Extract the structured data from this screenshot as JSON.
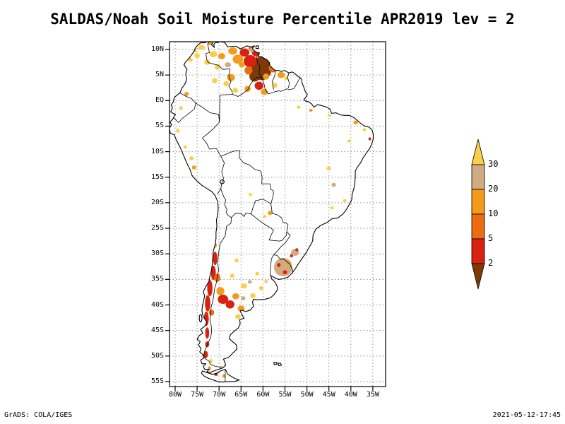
{
  "title": "SALDAS/Noah Soil Moisture Percentile APR2019 lev = 2",
  "axes": {
    "lat_labels": [
      "10N",
      "5N",
      "EQ",
      "5S",
      "10S",
      "15S",
      "20S",
      "25S",
      "30S",
      "35S",
      "40S",
      "45S",
      "50S",
      "55S"
    ],
    "lon_labels": [
      "80W",
      "75W",
      "70W",
      "65W",
      "60W",
      "55W",
      "50W",
      "45W",
      "40W",
      "35W"
    ]
  },
  "colorbar": {
    "labels": [
      "30",
      "20",
      "10",
      "5",
      "2"
    ],
    "segments": [
      {
        "name": "above-30",
        "color": "#fcce49"
      },
      {
        "name": "20-30",
        "color": "#d3ab82"
      },
      {
        "name": "10-20",
        "color": "#f49b1b"
      },
      {
        "name": "5-10",
        "color": "#ec6c12"
      },
      {
        "name": "2-5",
        "color": "#d82210"
      },
      {
        "name": "below-2",
        "color": "#7d3a06"
      }
    ]
  },
  "footer": {
    "left": "GrADS: COLA/IGES",
    "right": "2021-05-12-17:45"
  },
  "chart_data": {
    "type": "heatmap",
    "title": "SALDAS/Noah Soil Moisture Percentile APR2019 lev = 2",
    "variable": "Soil Moisture Percentile",
    "time": "APR2019",
    "level": "2",
    "projection": "latlon",
    "lon_range_deg": [
      -81.3,
      -32.2
    ],
    "lat_range_deg": [
      -56.0,
      11.5
    ],
    "percentile_levels": [
      30,
      20,
      10,
      5,
      2
    ],
    "legend_note": "top arrow = above 30th percentile, bottom arrow = below 2nd percentile",
    "regions_format": [
      "lon",
      "lat",
      "rx_deg",
      "ry_deg",
      "class_index_into_colorbar_segments"
    ],
    "regions": [
      [
        -60.3,
        6.3,
        2.3,
        2.3,
        5
      ],
      [
        -58.9,
        8.4,
        1.5,
        1.3,
        5
      ],
      [
        -61.9,
        4.7,
        1.2,
        1.0,
        5
      ],
      [
        -59.6,
        9.7,
        0.9,
        0.7,
        5
      ],
      [
        -62.9,
        7.7,
        1.5,
        1.2,
        4
      ],
      [
        -61.3,
        9.5,
        1.3,
        0.9,
        4
      ],
      [
        -64.2,
        9.4,
        1.1,
        0.8,
        4
      ],
      [
        -60.9,
        2.9,
        1.0,
        0.8,
        4
      ],
      [
        -57.7,
        6.4,
        1.0,
        0.9,
        3
      ],
      [
        -63.3,
        5.9,
        0.9,
        0.8,
        3
      ],
      [
        -62.6,
        10.2,
        0.7,
        0.5,
        3
      ],
      [
        -65.7,
        8.1,
        1.2,
        0.9,
        2
      ],
      [
        -66.9,
        9.7,
        1.0,
        0.7,
        2
      ],
      [
        -67.3,
        4.5,
        0.9,
        0.7,
        2
      ],
      [
        -59.7,
        1.7,
        0.8,
        0.6,
        2
      ],
      [
        -63.5,
        2.3,
        0.7,
        0.6,
        2
      ],
      [
        -55.9,
        5.0,
        0.8,
        0.6,
        2
      ],
      [
        -69.4,
        8.7,
        0.8,
        0.6,
        2
      ],
      [
        -59.3,
        4.7,
        0.7,
        0.6,
        2
      ],
      [
        -75.8,
        9.9,
        0.6,
        0.5,
        2
      ],
      [
        -72.0,
        11.3,
        0.6,
        0.5,
        2
      ],
      [
        -64.8,
        7.0,
        0.7,
        0.5,
        2
      ],
      [
        -71.3,
        9.1,
        0.9,
        0.6,
        0
      ],
      [
        -72.7,
        7.5,
        0.7,
        0.5,
        0
      ],
      [
        -74.0,
        10.4,
        0.8,
        0.5,
        0
      ],
      [
        -75.0,
        8.8,
        0.6,
        0.5,
        0
      ],
      [
        -70.4,
        6.5,
        0.6,
        0.5,
        0
      ],
      [
        -68.4,
        3.3,
        0.6,
        0.5,
        0
      ],
      [
        -71.0,
        3.9,
        0.6,
        0.5,
        0
      ],
      [
        -66.3,
        2.0,
        0.6,
        0.5,
        0
      ],
      [
        -57.3,
        3.0,
        0.6,
        0.5,
        0
      ],
      [
        -54.7,
        4.4,
        0.5,
        0.4,
        0
      ],
      [
        -76.5,
        8.0,
        0.5,
        0.4,
        0
      ],
      [
        -62.4,
        9.9,
        0.7,
        0.4,
        1
      ],
      [
        -68.0,
        7.0,
        0.7,
        0.5,
        1
      ],
      [
        -77.4,
        1.3,
        0.5,
        0.4,
        2
      ],
      [
        -78.7,
        -1.5,
        0.4,
        0.4,
        0
      ],
      [
        -79.4,
        -5.9,
        0.4,
        0.4,
        0
      ],
      [
        -76.3,
        -11.3,
        0.5,
        0.4,
        0
      ],
      [
        -75.7,
        -13.1,
        0.5,
        0.4,
        2
      ],
      [
        -77.7,
        -9.1,
        0.4,
        0.3,
        0
      ],
      [
        -51.9,
        -1.3,
        0.4,
        0.3,
        0
      ],
      [
        -49.1,
        -1.9,
        0.4,
        0.3,
        2
      ],
      [
        -44.9,
        -2.9,
        0.4,
        0.3,
        0
      ],
      [
        -38.9,
        -4.3,
        0.5,
        0.4,
        2
      ],
      [
        -36.9,
        -5.7,
        0.4,
        0.3,
        0
      ],
      [
        -35.7,
        -7.5,
        0.3,
        0.3,
        4
      ],
      [
        -40.4,
        -7.9,
        0.4,
        0.3,
        0
      ],
      [
        -45.0,
        -13.3,
        0.5,
        0.4,
        0
      ],
      [
        -43.9,
        -16.5,
        0.5,
        0.4,
        1
      ],
      [
        -41.4,
        -19.6,
        0.4,
        0.3,
        0
      ],
      [
        -44.3,
        -21.0,
        0.4,
        0.3,
        0
      ],
      [
        -62.9,
        -18.4,
        0.4,
        0.3,
        0
      ],
      [
        -58.4,
        -22.0,
        0.5,
        0.4,
        2
      ],
      [
        -59.6,
        -22.7,
        0.4,
        0.3,
        0
      ],
      [
        -55.4,
        -32.6,
        2.1,
        1.8,
        1
      ],
      [
        -55.0,
        -33.6,
        0.5,
        0.4,
        4
      ],
      [
        -56.4,
        -32.2,
        0.4,
        0.4,
        4
      ],
      [
        -54.2,
        -31.7,
        0.5,
        0.4,
        2
      ],
      [
        -52.7,
        -29.7,
        0.9,
        0.7,
        1
      ],
      [
        -52.3,
        -29.2,
        0.35,
        0.3,
        4
      ],
      [
        -53.5,
        -30.4,
        0.35,
        0.3,
        4
      ],
      [
        -70.9,
        -30.9,
        0.5,
        1.3,
        4
      ],
      [
        -71.3,
        -33.7,
        0.55,
        1.4,
        4
      ],
      [
        -72.1,
        -36.7,
        0.6,
        1.6,
        4
      ],
      [
        -72.6,
        -39.7,
        0.6,
        1.6,
        4
      ],
      [
        -72.9,
        -42.7,
        0.55,
        1.4,
        4
      ],
      [
        -72.7,
        -45.5,
        0.45,
        1.1,
        4
      ],
      [
        -70.4,
        -34.7,
        0.7,
        0.8,
        3
      ],
      [
        -69.7,
        -37.3,
        0.9,
        0.8,
        2
      ],
      [
        -69.1,
        -38.9,
        1.2,
        0.9,
        4
      ],
      [
        -67.5,
        -39.9,
        1.0,
        0.8,
        4
      ],
      [
        -66.2,
        -38.3,
        0.8,
        0.6,
        2
      ],
      [
        -65.0,
        -40.7,
        0.8,
        0.6,
        2
      ],
      [
        -71.7,
        -41.5,
        0.6,
        0.6,
        3
      ],
      [
        -71.0,
        -28.3,
        0.5,
        0.5,
        2
      ],
      [
        -64.3,
        -36.3,
        0.7,
        0.5,
        0
      ],
      [
        -62.3,
        -38.2,
        0.6,
        0.5,
        0
      ],
      [
        -60.4,
        -36.7,
        0.5,
        0.4,
        0
      ],
      [
        -65.7,
        -42.3,
        0.6,
        0.5,
        0
      ],
      [
        -63.2,
        -41.3,
        0.45,
        0.4,
        0
      ],
      [
        -67.0,
        -34.3,
        0.5,
        0.4,
        0
      ],
      [
        -66.0,
        -31.3,
        0.45,
        0.4,
        0
      ],
      [
        -61.3,
        -33.9,
        0.45,
        0.35,
        0
      ],
      [
        -59.3,
        -35.4,
        0.4,
        0.35,
        0
      ],
      [
        -64.5,
        -38.7,
        0.5,
        0.4,
        1
      ],
      [
        -63.0,
        -35.5,
        0.45,
        0.35,
        1
      ],
      [
        -72.7,
        -47.7,
        0.45,
        0.6,
        4
      ],
      [
        -73.0,
        -49.7,
        0.45,
        0.7,
        4
      ],
      [
        -71.9,
        -51.0,
        0.4,
        0.45,
        0
      ],
      [
        -72.2,
        -52.4,
        0.35,
        0.4,
        2
      ],
      [
        -70.7,
        -53.5,
        0.45,
        0.4,
        4
      ],
      [
        -69.5,
        -52.3,
        0.4,
        0.35,
        1
      ],
      [
        -68.9,
        -53.9,
        0.4,
        0.35,
        2
      ]
    ]
  }
}
